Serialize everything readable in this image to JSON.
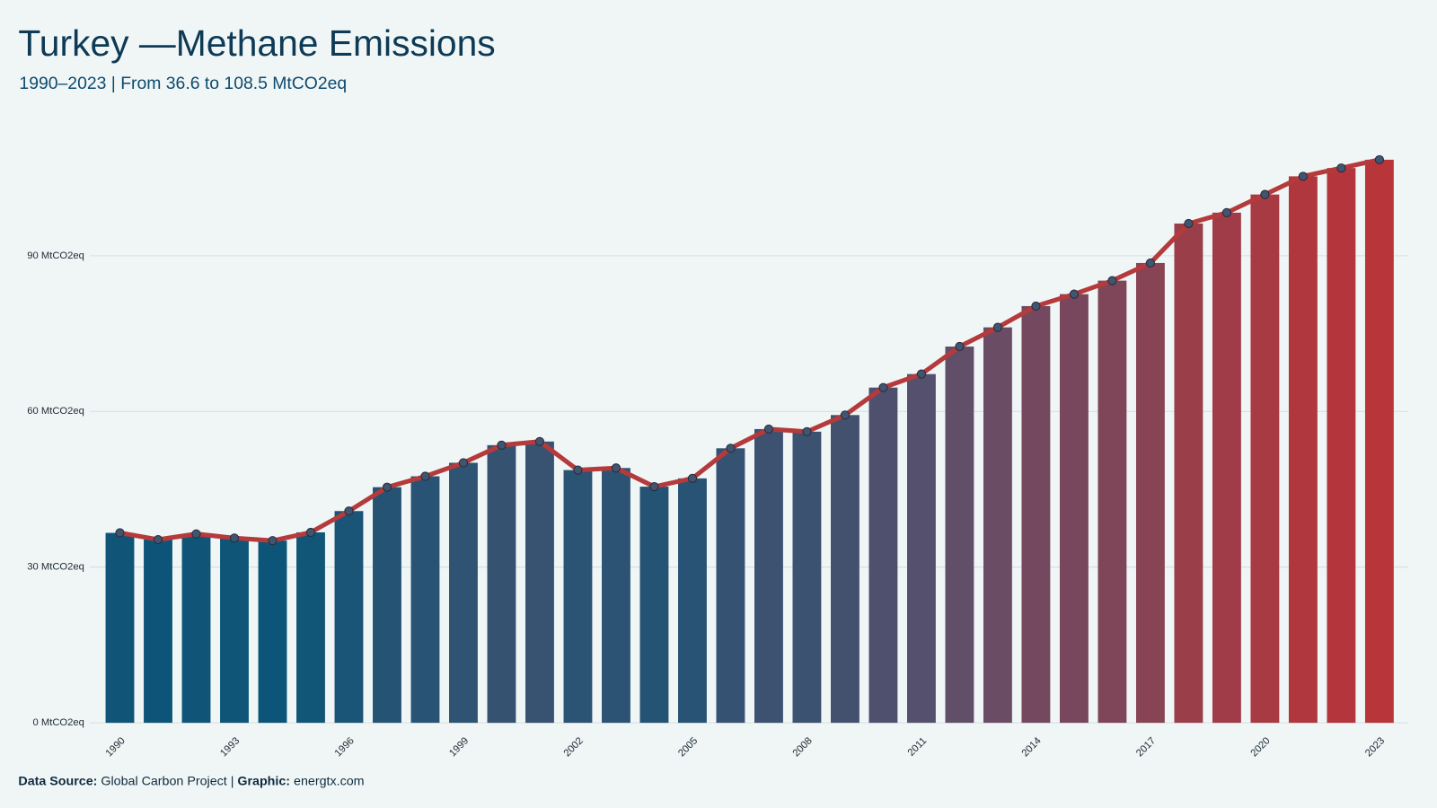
{
  "chart_data": {
    "type": "bar_line",
    "title": "Turkey —Methane Emissions",
    "subtitle": "1990–2023 | From 36.6 to 108.5 MtCO2eq",
    "x": [
      1990,
      1991,
      1992,
      1993,
      1994,
      1995,
      1996,
      1997,
      1998,
      1999,
      2000,
      2001,
      2002,
      2003,
      2004,
      2005,
      2006,
      2007,
      2008,
      2009,
      2010,
      2011,
      2012,
      2013,
      2014,
      2015,
      2016,
      2017,
      2018,
      2019,
      2020,
      2021,
      2022,
      2023
    ],
    "values": [
      36.6,
      35.3,
      36.4,
      35.6,
      35.1,
      36.7,
      40.8,
      45.4,
      47.5,
      50.1,
      53.5,
      54.2,
      48.7,
      49.1,
      45.5,
      47.1,
      52.9,
      56.6,
      56.1,
      59.3,
      64.6,
      67.2,
      72.5,
      76.2,
      80.3,
      82.6,
      85.2,
      88.6,
      96.2,
      98.3,
      101.8,
      105.3,
      106.9,
      108.5
    ],
    "color_scale": [
      "#0d5578",
      "#5f4f6b",
      "#b8353a"
    ],
    "line_color": "#b53a3c",
    "marker_color": "#3f5570",
    "xlim": [
      1989.5,
      2023.5
    ],
    "xticks": [
      1990,
      1993,
      1996,
      1999,
      2002,
      2005,
      2008,
      2011,
      2014,
      2017,
      2020,
      2023
    ],
    "ylim": [
      0,
      112.8
    ],
    "yticks": [
      {
        "value": 0,
        "label": "0 MtCO2eq"
      },
      {
        "value": 30,
        "label": "30 MtCO2eq"
      },
      {
        "value": 60,
        "label": "60 MtCO2eq"
      },
      {
        "value": 90,
        "label": "90 MtCO2eq"
      }
    ],
    "grid": true,
    "footer": {
      "source_label": "Data Source:",
      "source": "Global Carbon Project",
      "separator": "|",
      "graphic_label": "Graphic:",
      "graphic": "energtx.com"
    }
  }
}
